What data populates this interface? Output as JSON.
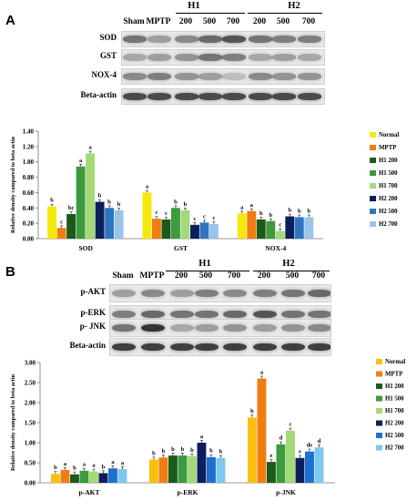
{
  "panelA": {
    "letter": "A",
    "groups": {
      "h1": "H1",
      "h2": "H2"
    },
    "lane_labels": [
      "Sham",
      "MPTP",
      "200",
      "500",
      "700",
      "200",
      "500",
      "700"
    ],
    "blot_labels": [
      "SOD",
      "GST",
      "NOX-4",
      "Beta-actin"
    ]
  },
  "panelB": {
    "letter": "B",
    "groups": {
      "h1": "H1",
      "h2": "H2"
    },
    "lane_labels": [
      "Sham",
      "MPTP",
      "200",
      "500",
      "700",
      "200",
      "500",
      "700"
    ],
    "blot_labels": [
      "p-AKT",
      "p-ERK",
      "p- JNK",
      "Beta-actin"
    ]
  },
  "chart_data": [
    {
      "type": "bar",
      "title": "",
      "ylabel": "Relative density compared to beta actin",
      "xlabel": "",
      "ylim": [
        0,
        1.4
      ],
      "yticks": [
        "0.00",
        "0.20",
        "0.40",
        "0.60",
        "0.80",
        "1.00",
        "1.20",
        "1.40"
      ],
      "categories": [
        "SOD",
        "GST",
        "NOX-4"
      ],
      "legend_position": "right",
      "grid": false,
      "series": [
        {
          "name": "Normal",
          "color": "#f5e80a",
          "values": [
            0.42,
            0.6,
            0.33
          ],
          "labels": [
            "b",
            "a",
            "a"
          ]
        },
        {
          "name": "MPTP",
          "color": "#f07d12",
          "values": [
            0.14,
            0.26,
            0.36
          ],
          "labels": [
            "c",
            "c",
            "a"
          ]
        },
        {
          "name": "H1 200",
          "color": "#1c5a1c",
          "values": [
            0.32,
            0.25,
            0.25
          ],
          "labels": [
            "bc",
            "c",
            "b"
          ]
        },
        {
          "name": "H1 500",
          "color": "#3d9a3d",
          "values": [
            0.94,
            0.4,
            0.23
          ],
          "labels": [
            "a",
            "b",
            "b"
          ]
        },
        {
          "name": "H1 700",
          "color": "#a3d977",
          "values": [
            1.11,
            0.37,
            0.1
          ],
          "labels": [
            "a",
            "b",
            "c"
          ]
        },
        {
          "name": "H2 200",
          "color": "#0c1f5c",
          "values": [
            0.48,
            0.18,
            0.29
          ],
          "labels": [
            "b",
            "c",
            "b"
          ]
        },
        {
          "name": "H2 500",
          "color": "#2e75c0",
          "values": [
            0.4,
            0.21,
            0.28
          ],
          "labels": [
            "b",
            "c",
            "b"
          ]
        },
        {
          "name": "H2 700",
          "color": "#9ac4e8",
          "values": [
            0.37,
            0.19,
            0.28
          ],
          "labels": [
            "b",
            "c",
            "b"
          ]
        }
      ]
    },
    {
      "type": "bar",
      "title": "",
      "ylabel": "Relative density compared to beta actin",
      "xlabel": "",
      "ylim": [
        0,
        3.0
      ],
      "yticks": [
        "0.00",
        "0.50",
        "1.00",
        "1.50",
        "2.00",
        "2.50",
        "3.00"
      ],
      "categories": [
        "p-AKT",
        "p-ERK",
        "p-JNK"
      ],
      "legend_position": "right",
      "grid": false,
      "series": [
        {
          "name": "Normal",
          "color": "#fbbf10",
          "values": [
            0.22,
            0.58,
            1.63
          ],
          "labels": [
            "b",
            "b",
            "b"
          ]
        },
        {
          "name": "MPTP",
          "color": "#f07d12",
          "values": [
            0.32,
            0.63,
            2.6
          ],
          "labels": [
            "a",
            "b",
            "a"
          ]
        },
        {
          "name": "H1 200",
          "color": "#1c5a1c",
          "values": [
            0.21,
            0.68,
            0.52
          ],
          "labels": [
            "b",
            "b",
            "e"
          ]
        },
        {
          "name": "H1 500",
          "color": "#3d9a3d",
          "values": [
            0.3,
            0.68,
            0.96
          ],
          "labels": [
            "a",
            "b",
            "d"
          ]
        },
        {
          "name": "H1 700",
          "color": "#a3d977",
          "values": [
            0.28,
            0.66,
            1.3
          ],
          "labels": [
            "a",
            "b",
            "c"
          ]
        },
        {
          "name": "H2 200",
          "color": "#0c1f5c",
          "values": [
            0.24,
            1.0,
            0.62
          ],
          "labels": [
            "b",
            "a",
            "e"
          ]
        },
        {
          "name": "H2 500",
          "color": "#1f6fd0",
          "values": [
            0.36,
            0.64,
            0.78
          ],
          "labels": [
            "a",
            "b",
            "de"
          ]
        },
        {
          "name": "H2 700",
          "color": "#7cc8ee",
          "values": [
            0.34,
            0.62,
            0.88
          ],
          "labels": [
            "a",
            "b",
            "d"
          ]
        }
      ]
    }
  ]
}
